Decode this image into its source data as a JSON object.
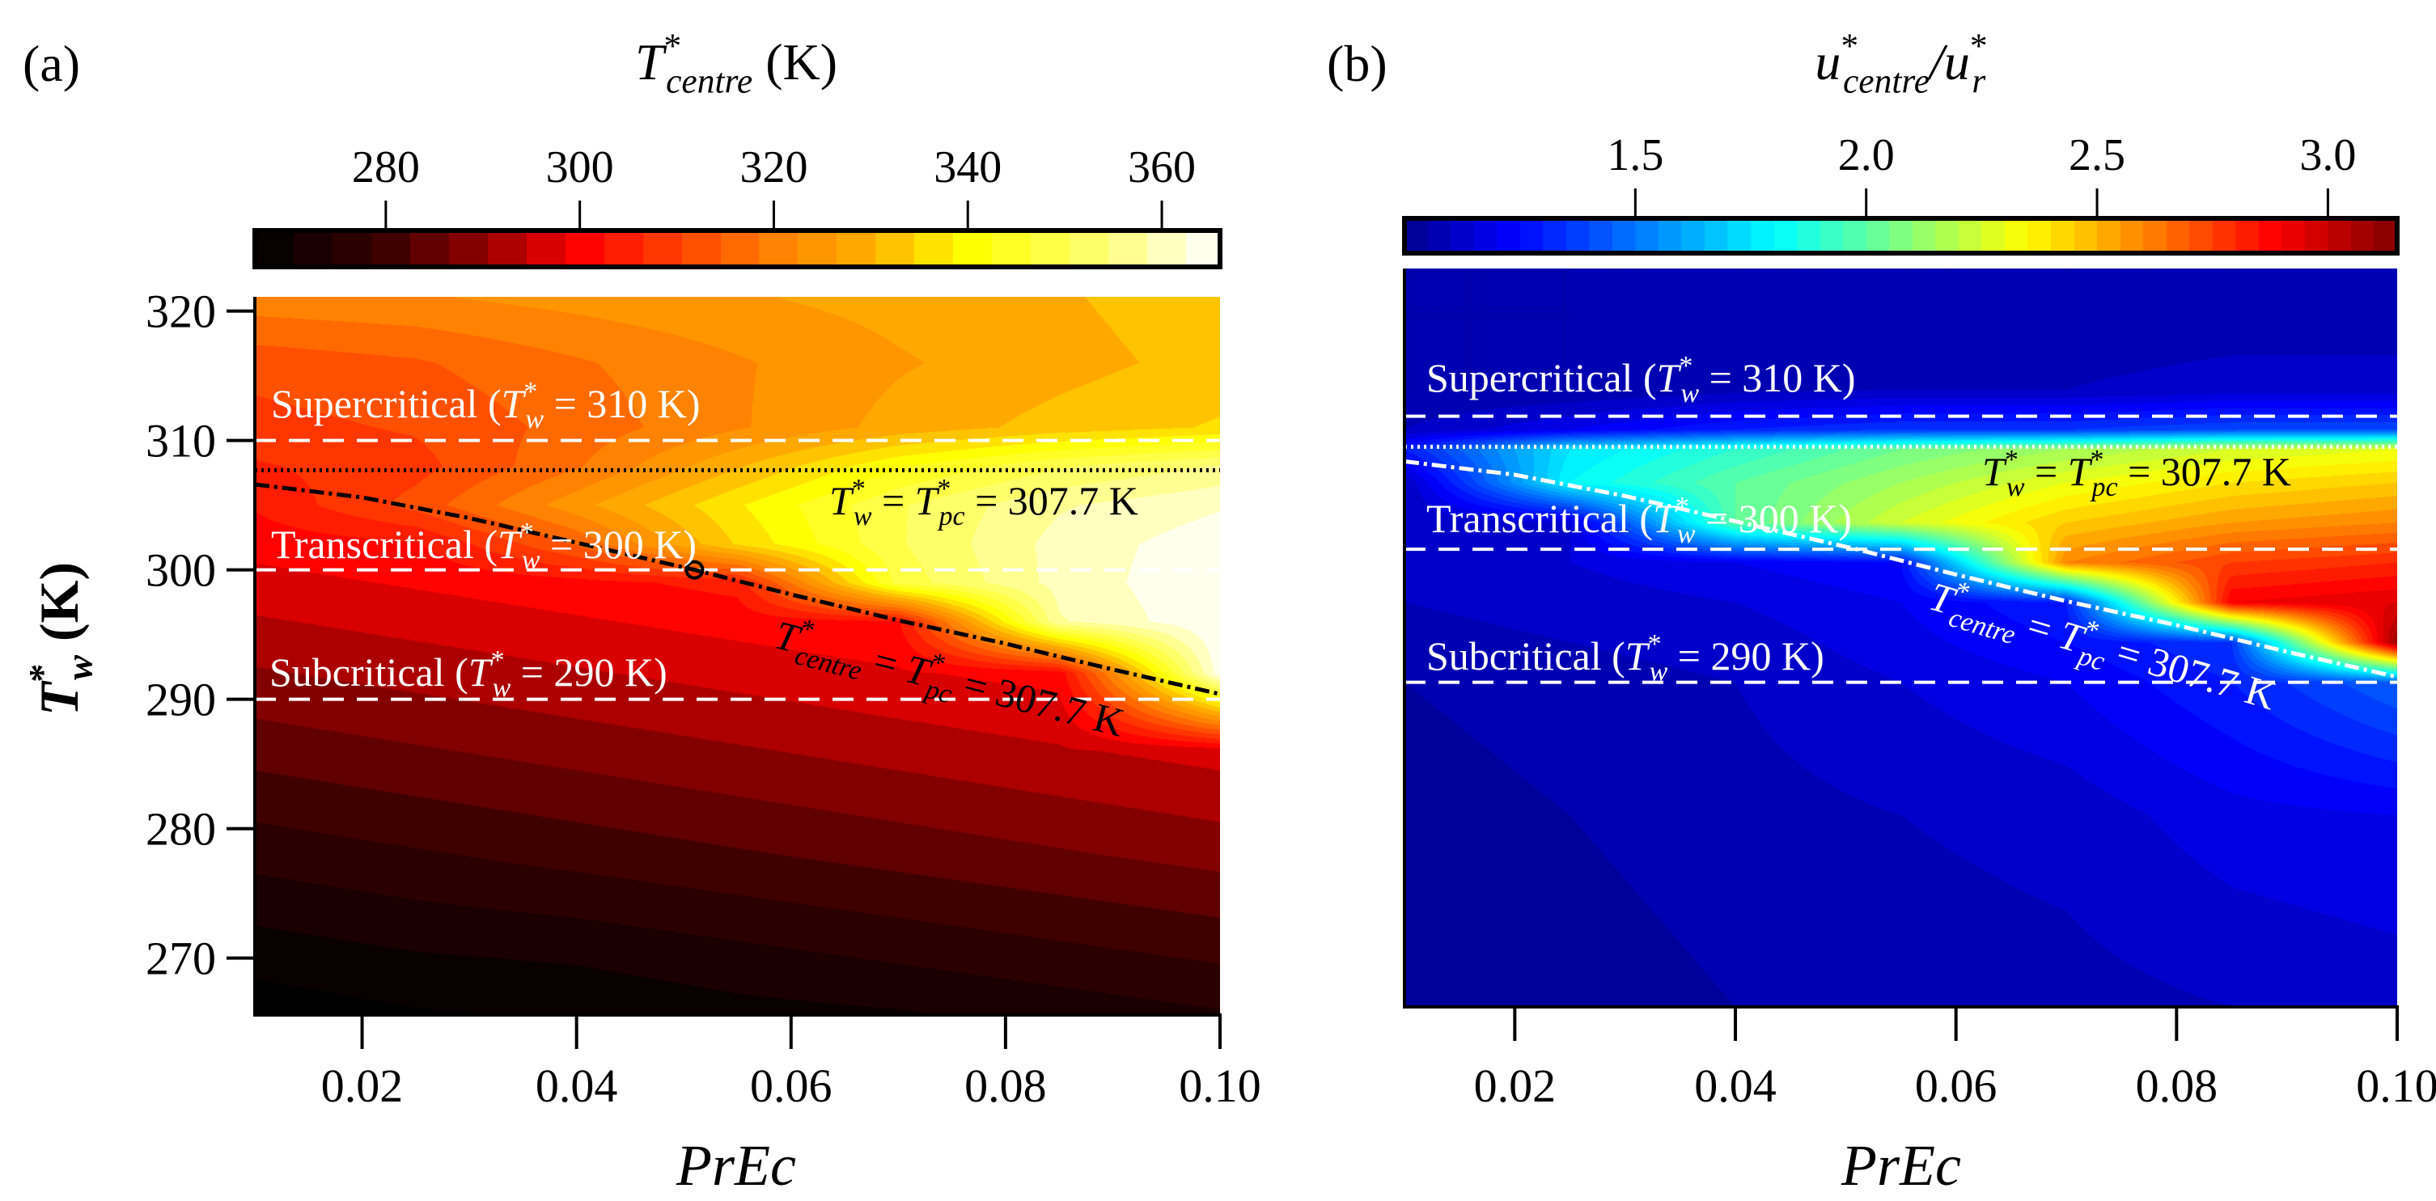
{
  "figure": {
    "panel_a_label": "(a)",
    "panel_b_label": "(b)"
  },
  "chart_data": [
    {
      "type": "heatmap",
      "panel": "a",
      "title_parts": [
        [
          "T",
          "i"
        ],
        [
          "*",
          "sup"
        ],
        [
          "centre",
          "subx"
        ],
        [
          " (K)",
          "n"
        ]
      ],
      "colormap": "hot",
      "colorbar": {
        "range": [
          266.5,
          366
        ],
        "ticks": [
          280,
          300,
          320,
          340,
          360
        ],
        "tick_labels": [
          "280",
          "300",
          "320",
          "340",
          "360"
        ],
        "level_step": 4
      },
      "xlabel": "PrEc",
      "ylabel_parts": [
        [
          "T",
          "bi"
        ],
        [
          "*",
          "bsup"
        ],
        [
          "w",
          "bsubx"
        ],
        [
          " (K)",
          "b"
        ]
      ],
      "xlim": [
        0.01,
        0.1
      ],
      "ylim": [
        265.6,
        321.1
      ],
      "xticks": [
        0.02,
        0.04,
        0.06,
        0.08,
        0.1
      ],
      "xtick_labels": [
        "0.02",
        "0.04",
        "0.06",
        "0.08",
        "0.10"
      ],
      "yticks": [
        270,
        280,
        290,
        300,
        310,
        320
      ],
      "ytick_labels": [
        "270",
        "280",
        "290",
        "300",
        "310",
        "320"
      ],
      "x": [
        0.01,
        0.025,
        0.04,
        0.055,
        0.07,
        0.085,
        0.1
      ],
      "y": [
        321,
        316,
        311,
        308,
        305,
        302,
        299,
        296,
        292,
        286,
        278,
        270,
        265.6
      ],
      "z": [
        [
          321,
          322,
          324,
          326,
          328,
          330,
          333
        ],
        [
          312,
          314,
          318,
          322,
          326,
          329,
          332
        ],
        [
          309,
          311,
          316,
          322,
          328,
          332,
          335
        ],
        [
          306,
          309,
          318,
          330,
          342,
          350,
          355
        ],
        [
          303,
          312,
          325,
          338,
          350,
          358,
          362
        ],
        [
          300,
          302,
          315,
          335,
          350,
          360,
          365
        ],
        [
          297,
          299,
          301,
          304,
          348,
          360,
          366
        ],
        [
          294,
          296,
          298,
          300,
          302,
          358,
          366
        ],
        [
          290,
          292,
          294,
          296,
          298,
          300,
          365
        ],
        [
          284,
          286,
          288,
          290,
          292,
          294,
          296
        ],
        [
          276,
          278,
          280,
          282,
          284,
          286,
          288
        ],
        [
          268,
          270,
          271,
          273,
          275,
          277,
          279
        ],
        [
          264,
          266,
          267,
          269,
          270,
          272,
          274
        ]
      ],
      "dashed_lines": [
        310,
        300,
        290
      ],
      "dotted_line": 307.7,
      "curve": {
        "x": [
          0.01,
          0.02,
          0.03,
          0.04,
          0.051,
          0.06,
          0.07,
          0.08,
          0.09,
          0.1
        ],
        "y": [
          306.6,
          305.6,
          304.0,
          302.1,
          300.0,
          298.1,
          296.1,
          294.3,
          292.3,
          290.4
        ]
      },
      "marker": {
        "x": 0.051,
        "y": 300
      },
      "line_color": "#000000",
      "annotations": [
        {
          "name": "supercritical-label",
          "color": "#ffffff",
          "parts": [
            [
              "Supercritical (",
              "n"
            ],
            [
              "T",
              "i"
            ],
            [
              "*",
              "sup"
            ],
            [
              "w",
              "subx"
            ],
            [
              " = 310 K)",
              "n"
            ]
          ]
        },
        {
          "name": "transcritical-label",
          "color": "#ffffff",
          "parts": [
            [
              "Transcritical (",
              "n"
            ],
            [
              "T",
              "i"
            ],
            [
              "*",
              "sup"
            ],
            [
              "w",
              "subx"
            ],
            [
              " = 300 K)",
              "n"
            ]
          ]
        },
        {
          "name": "subcritical-label",
          "color": "#ffffff",
          "parts": [
            [
              "Subcritical (",
              "n"
            ],
            [
              "T",
              "i"
            ],
            [
              "*",
              "sup"
            ],
            [
              "w",
              "subx"
            ],
            [
              " = 290 K)",
              "n"
            ]
          ]
        },
        {
          "name": "pseudocritical-wall-label",
          "color": "#000000",
          "parts": [
            [
              "T",
              "i"
            ],
            [
              "*",
              "sup"
            ],
            [
              "w",
              "subx"
            ],
            [
              " = ",
              "n"
            ],
            [
              "T",
              "i"
            ],
            [
              "*",
              "sup"
            ],
            [
              "pc",
              "subx"
            ],
            [
              " = 307.7 K",
              "n"
            ]
          ]
        },
        {
          "name": "pseudocritical-centre-label",
          "color": "#000000",
          "parts": [
            [
              "T",
              "i"
            ],
            [
              "*",
              "sup"
            ],
            [
              "centre",
              "subx"
            ],
            [
              " = ",
              "n"
            ],
            [
              "T",
              "i"
            ],
            [
              "*",
              "sup"
            ],
            [
              "pc",
              "subx"
            ],
            [
              " = 307.7 K",
              "n"
            ]
          ]
        }
      ]
    },
    {
      "type": "heatmap",
      "panel": "b",
      "title_parts": [
        [
          "u",
          "i"
        ],
        [
          "*",
          "sup"
        ],
        [
          "centre",
          "subx"
        ],
        [
          "/",
          "i"
        ],
        [
          "u",
          "i"
        ],
        [
          "*",
          "sup"
        ],
        [
          "r",
          "subx"
        ]
      ],
      "colormap": "jet",
      "colorbar": {
        "range": [
          1.0,
          3.15
        ],
        "ticks": [
          1.5,
          2.0,
          2.5,
          3.0
        ],
        "tick_labels": [
          "1.5",
          "2.0",
          "2.5",
          "3.0"
        ],
        "level_step": 0.05
      },
      "xlabel": "PrEc",
      "xlim": [
        0.01,
        0.1
      ],
      "ylim": [
        265.6,
        321.1
      ],
      "xticks": [
        0.02,
        0.04,
        0.06,
        0.08,
        0.1
      ],
      "xtick_labels": [
        "0.02",
        "0.04",
        "0.06",
        "0.08",
        "0.10"
      ],
      "x": [
        0.01,
        0.025,
        0.04,
        0.055,
        0.07,
        0.085,
        0.1
      ],
      "y": [
        321,
        312,
        309,
        307.5,
        305,
        302,
        299,
        296,
        293,
        290,
        280,
        265.6
      ],
      "z": [
        [
          1.05,
          1.05,
          1.05,
          1.05,
          1.05,
          1.05,
          1.05
        ],
        [
          1.05,
          1.05,
          1.08,
          1.1,
          1.1,
          1.12,
          1.12
        ],
        [
          1.1,
          1.2,
          1.3,
          1.35,
          1.35,
          1.4,
          1.4
        ],
        [
          1.3,
          1.75,
          1.9,
          2.05,
          2.15,
          2.25,
          2.3
        ],
        [
          1.1,
          1.8,
          2.0,
          2.15,
          2.3,
          2.4,
          2.45
        ],
        [
          1.1,
          1.15,
          2.0,
          2.25,
          2.45,
          2.55,
          2.6
        ],
        [
          1.1,
          1.15,
          1.2,
          1.25,
          2.6,
          2.75,
          2.8
        ],
        [
          1.1,
          1.12,
          1.15,
          1.2,
          1.3,
          2.9,
          2.95
        ],
        [
          1.08,
          1.1,
          1.12,
          1.18,
          1.25,
          1.35,
          3.1
        ],
        [
          1.05,
          1.08,
          1.1,
          1.15,
          1.2,
          1.3,
          1.45
        ],
        [
          1.02,
          1.05,
          1.08,
          1.1,
          1.12,
          1.18,
          1.2
        ],
        [
          1.0,
          1.02,
          1.05,
          1.07,
          1.08,
          1.1,
          1.12
        ]
      ],
      "dashed_lines": [
        310,
        300,
        290
      ],
      "dotted_line": 307.7,
      "curve": {
        "x": [
          0.01,
          0.02,
          0.03,
          0.04,
          0.051,
          0.06,
          0.07,
          0.08,
          0.09,
          0.1
        ],
        "y": [
          306.6,
          305.6,
          304.0,
          302.1,
          300.0,
          298.1,
          296.1,
          294.3,
          292.3,
          290.4
        ]
      },
      "line_color": "#ffffff",
      "annotations": [
        {
          "name": "supercritical-label",
          "color": "#ffffff",
          "parts": [
            [
              "Supercritical (",
              "n"
            ],
            [
              "T",
              "i"
            ],
            [
              "*",
              "sup"
            ],
            [
              "w",
              "subx"
            ],
            [
              " = 310 K)",
              "n"
            ]
          ]
        },
        {
          "name": "transcritical-label",
          "color": "#ffffff",
          "parts": [
            [
              "Transcritical (",
              "n"
            ],
            [
              "T",
              "i"
            ],
            [
              "*",
              "sup"
            ],
            [
              "w",
              "subx"
            ],
            [
              " = 300 K)",
              "n"
            ]
          ]
        },
        {
          "name": "subcritical-label",
          "color": "#ffffff",
          "parts": [
            [
              "Subcritical (",
              "n"
            ],
            [
              "T",
              "i"
            ],
            [
              "*",
              "sup"
            ],
            [
              "w",
              "subx"
            ],
            [
              " = 290 K)",
              "n"
            ]
          ]
        },
        {
          "name": "pseudocritical-wall-label",
          "color": "#000000",
          "parts": [
            [
              "T",
              "i"
            ],
            [
              "*",
              "sup"
            ],
            [
              "w",
              "subx"
            ],
            [
              " = ",
              "n"
            ],
            [
              "T",
              "i"
            ],
            [
              "*",
              "sup"
            ],
            [
              "pc",
              "subx"
            ],
            [
              " = 307.7 K",
              "n"
            ]
          ]
        },
        {
          "name": "pseudocritical-centre-label",
          "color": "#ffffff",
          "parts": [
            [
              "T",
              "i"
            ],
            [
              "*",
              "sup"
            ],
            [
              "centre",
              "subx"
            ],
            [
              " = ",
              "n"
            ],
            [
              "T",
              "i"
            ],
            [
              "*",
              "sup"
            ],
            [
              "pc",
              "subx"
            ],
            [
              " = 307.7 K",
              "n"
            ]
          ]
        }
      ]
    }
  ]
}
